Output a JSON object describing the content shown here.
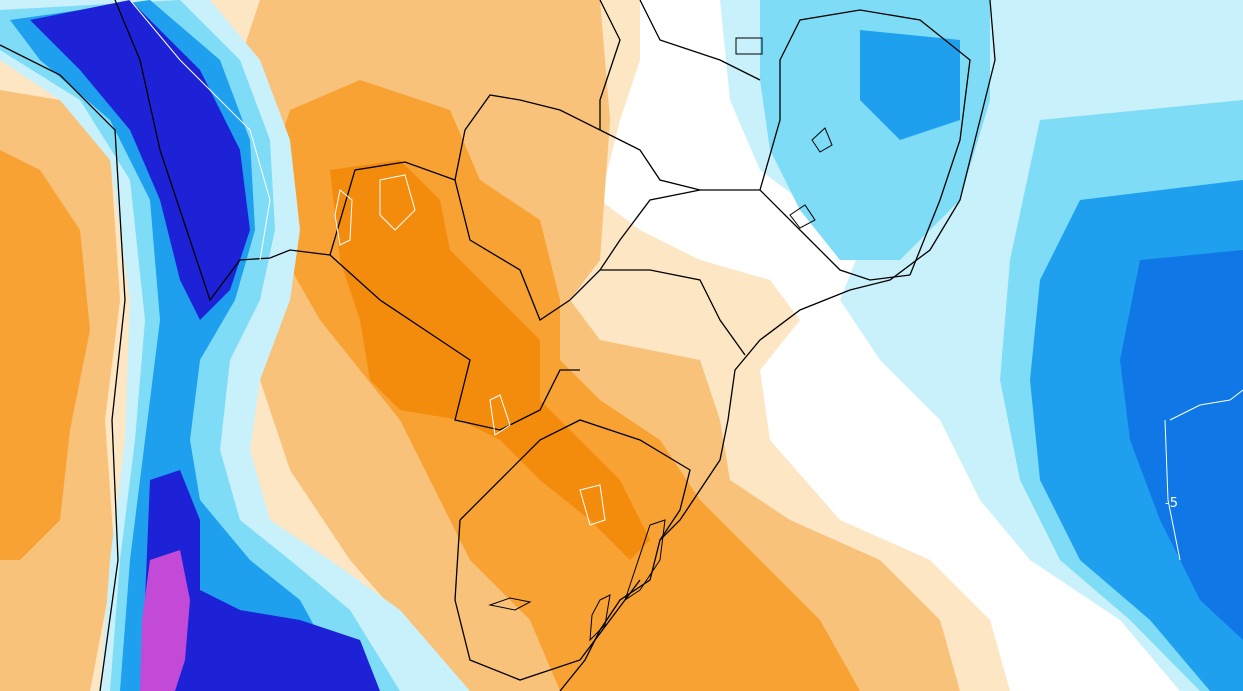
{
  "map": {
    "labels": {
      "contour_label": "-5"
    },
    "colors": {
      "orange_light": "#fde6c4",
      "orange_mid": "#f9c27a",
      "orange": "#f7a233",
      "orange_dark": "#f38b0d",
      "cyan_light": "#c9f1fb",
      "cyan": "#7fdcf6",
      "blue": "#1ea0ef",
      "blue_mid": "#1078e6",
      "blue_dark": "#1e22d6",
      "violet": "#4b18c9",
      "magenta": "#c34ad6",
      "border": "#000000"
    }
  }
}
